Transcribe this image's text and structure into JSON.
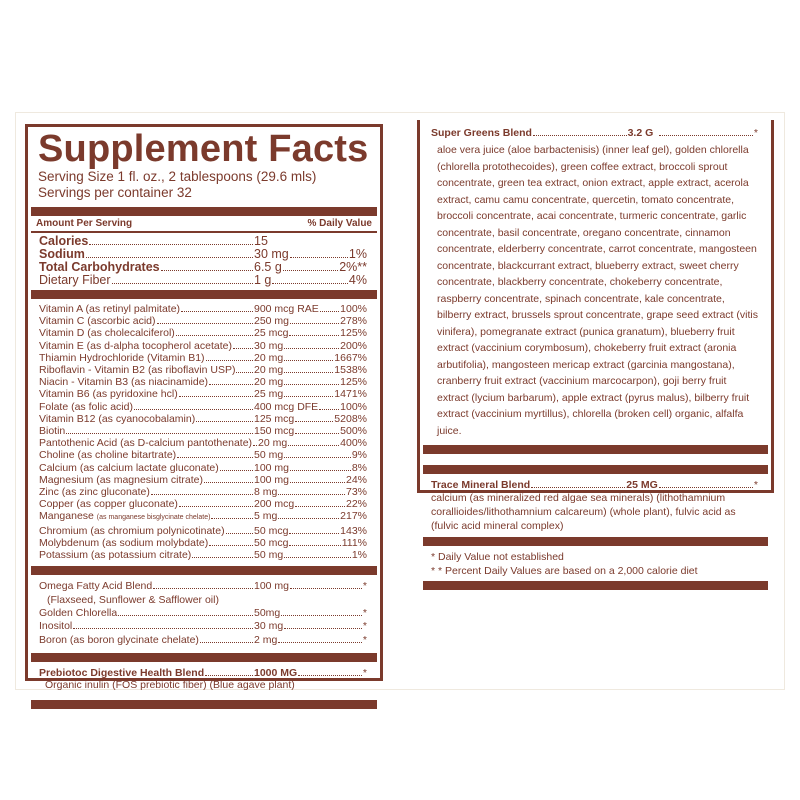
{
  "title": "Supplement Facts",
  "serving_size": "Serving Size 1 fl. oz., 2 tablespoons (29.6 mls)",
  "servings_per_container": "Servings per container 32",
  "header": {
    "amount": "Amount Per Serving",
    "dv": "% Daily Value"
  },
  "macros": [
    {
      "name": "Calories",
      "amount": "15",
      "dv": "",
      "bold": true
    },
    {
      "name": "Sodium",
      "amount": "30 mg",
      "dv": "1%",
      "bold": true
    },
    {
      "name": "Total Carbohydrates",
      "amount": "6.5 g",
      "dv": "2%**",
      "bold": true
    },
    {
      "name": "Dietary Fiber",
      "amount": "1 g",
      "dv": "4%",
      "bold": false
    }
  ],
  "vitamins": [
    {
      "name": "Vitamin A (as retinyl palmitate)",
      "amount": "900 mcg RAE",
      "dv": "100%"
    },
    {
      "name": "Vitamin C (ascorbic acid)",
      "amount": "250 mg",
      "dv": "278%"
    },
    {
      "name": "Vitamin D (as cholecalciferol)",
      "amount": "25 mcg",
      "dv": "125%"
    },
    {
      "name": "Vitamin E (as d-alpha tocopherol acetate)",
      "amount": "30 mg",
      "dv": "200%"
    },
    {
      "name": "Thiamin Hydrochloride (Vitamin B1)",
      "amount": "20 mg",
      "dv": "1667%"
    },
    {
      "name": "Riboflavin - Vitamin B2 (as riboflavin USP)",
      "amount": "20 mg",
      "dv": "1538%"
    },
    {
      "name": "Niacin - Vitamin B3 (as niacinamide)",
      "amount": "20 mg",
      "dv": "125%"
    },
    {
      "name": "Vitamin B6 (as pyridoxine hcl)",
      "amount": "25 mg",
      "dv": "1471%"
    },
    {
      "name": "Folate (as folic acid)",
      "amount": "400 mcg DFE",
      "dv": "100%"
    },
    {
      "name": "Vitamin B12 (as cyanocobalamin)",
      "amount": "125 mcg",
      "dv": "5208%"
    },
    {
      "name": "Biotin",
      "amount": "150 mcg",
      "dv": "500%"
    },
    {
      "name": "Pantothenic Acid (as D-calcium pantothenate)",
      "amount": "20 mg",
      "dv": "400%"
    },
    {
      "name": "Choline (as choline bitartrate)",
      "amount": "50 mg",
      "dv": "9%"
    },
    {
      "name": "Calcium (as calcium lactate gluconate)",
      "amount": "100 mg",
      "dv": "8%"
    },
    {
      "name": "Magnesium (as magnesium citrate)",
      "amount": "100 mg",
      "dv": "24%"
    },
    {
      "name": "Zinc (as zinc gluconate)",
      "amount": "8 mg",
      "dv": "73%"
    },
    {
      "name": "Copper (as copper gluconate)",
      "amount": "200 mcg",
      "dv": "22%"
    },
    {
      "name": "Manganese",
      "name_small": "(as manganese bisglycinate chelate)",
      "amount": "5 mg",
      "dv": "217%"
    },
    {
      "name": "Chromium (as chromium polynicotinate)",
      "amount": "50 mcg",
      "dv": "143%"
    },
    {
      "name": "Molybdenum (as sodium molybdate)",
      "amount": "50 mcg",
      "dv": "111%"
    },
    {
      "name": "Potassium (as potassium citrate)",
      "amount": "50 mg",
      "dv": "1%"
    }
  ],
  "others": [
    {
      "name": "Omega Fatty Acid Blend",
      "amount": "100 mg",
      "dv": "*",
      "sub": "(Flaxseed, Sunflower & Safflower oil)"
    },
    {
      "name": "Golden Chlorella",
      "amount": "50mg",
      "dv": "*"
    },
    {
      "name": "Inositol",
      "amount": "30 mg",
      "dv": "*"
    },
    {
      "name": "Boron (as boron glycinate chelate)",
      "amount": "2 mg",
      "dv": "*"
    }
  ],
  "prebiotic": {
    "name": "Prebiotoc Digestive Health Blend",
    "amount": "1000 MG",
    "dv": "*",
    "sub": "Organic inulin (FOS prebiotic fiber) (Blue agave plant)"
  },
  "super_greens": {
    "name": "Super Greens Blend",
    "amount": "3.2 G",
    "dv": "*",
    "ingredients": "aloe vera juice (aloe barbactenisis) (inner leaf gel), golden chlorella (chlorella protothecoides), green coffee extract, broccoli sprout concentrate, green tea extract, onion extract, apple extract, acerola extract, camu camu concentrate, quercetin, tomato concentrate, broccoli concentrate, acai concentrate, turmeric concentrate, garlic concentrate, basil concentrate, oregano concentrate, cinnamon concentrate, elderberry concentrate, carrot concentrate, mangosteen concentrate, blackcurrant extract, blueberry extract, sweet cherry concentrate, blackberry concentrate, chokeberry concentrate, raspberry concentrate, spinach concentrate, kale concentrate, bilberry extract, brussels sprout concentrate, grape seed extract (vitis vinifera), pomegranate extract (punica granatum), blueberry fruit extract (vaccinium corymbosum), chokeberry fruit extract (aronia arbutifolia), mangosteen mericap extract (garcinia mangostana), cranberry fruit extract (vaccinium marcocarpon), goji berry fruit extract (lycium barbarum), apple extract (pyrus malus), bilberry fruit extract (vaccinium myrtillus), chlorella (broken cell) organic, alfalfa juice."
  },
  "trace_minerals": {
    "name": "Trace Mineral Blend",
    "amount": "25 MG",
    "dv": "*",
    "ingredients": "calcium (as mineralized red algae sea minerals) (lithothamnium corallioides/lithothamnium calcareum) (whole plant), fulvic acid as (fulvic acid mineral complex)"
  },
  "footnotes": [
    "* Daily Value not established",
    "* * Percent Daily Values are based on a 2,000 calorie diet"
  ],
  "colors": {
    "label_brown": "#7b3a2c"
  }
}
